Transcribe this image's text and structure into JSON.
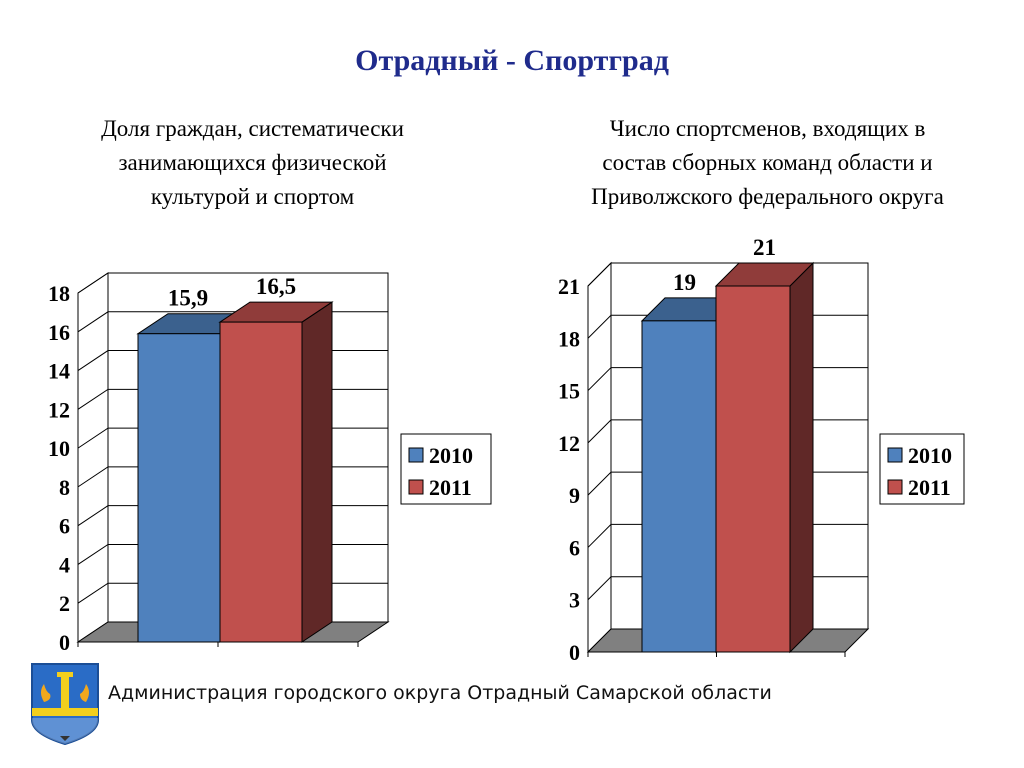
{
  "title": "Отрадный - Спортград",
  "footer": "Администрация городского округа Отрадный Самарской области",
  "colors": {
    "title": "#1f2b8c",
    "series_2010": "#4f81bd",
    "series_2011": "#c0504d"
  },
  "icons": {
    "emblem": "city-coat-of-arms-icon"
  },
  "chart_data": [
    {
      "type": "bar",
      "title": "Доля граждан, систематически\nзанимающихся физической\nкультурой и спортом",
      "categories": [
        ""
      ],
      "series": [
        {
          "name": "2010",
          "values": [
            15.9
          ],
          "label": "15,9"
        },
        {
          "name": "2011",
          "values": [
            16.5
          ],
          "label": "16,5"
        }
      ],
      "ylim": [
        0,
        18
      ],
      "yticks": [
        "0",
        "2",
        "4",
        "6",
        "8",
        "10",
        "12",
        "14",
        "16",
        "18"
      ],
      "grid": true,
      "legend": "right",
      "style": "3d"
    },
    {
      "type": "bar",
      "title": "Число спортсменов, входящих  в\nсостав сборных команд области и\nПриволжского федерального округа",
      "categories": [
        ""
      ],
      "series": [
        {
          "name": "2010",
          "values": [
            19
          ],
          "label": "19"
        },
        {
          "name": "2011",
          "values": [
            21
          ],
          "label": "21"
        }
      ],
      "ylim": [
        0,
        21
      ],
      "yticks": [
        "0",
        "3",
        "6",
        "9",
        "12",
        "15",
        "18",
        "21"
      ],
      "grid": true,
      "legend": "right",
      "style": "3d"
    }
  ]
}
